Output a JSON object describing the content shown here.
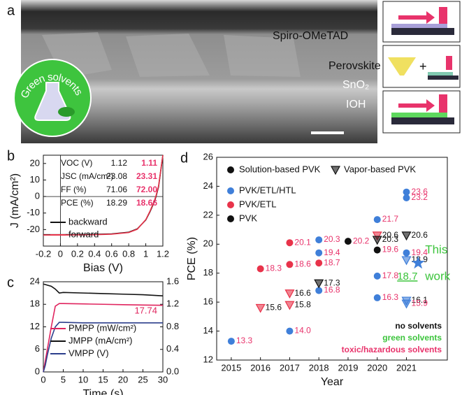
{
  "figure_a": {
    "panel": "a",
    "layers": [
      "Spiro-OMeTAD",
      "Perovskite",
      "SnO₂",
      "IOH"
    ],
    "badge": "Green solvents"
  },
  "chart_data": [
    {
      "type": "line",
      "panel": "b",
      "xlabel": "Bias (V)",
      "ylabel": "J (mA/cm²)",
      "xlim": [
        -0.2,
        1.2
      ],
      "xticks": [
        -0.2,
        0,
        0.2,
        0.4,
        0.6,
        0.8,
        1,
        1.2
      ],
      "ylim": [
        -30,
        25
      ],
      "yticks": [
        -20,
        -10,
        0,
        10,
        20
      ],
      "x": [
        -0.2,
        0,
        0.2,
        0.4,
        0.6,
        0.8,
        0.9,
        1.0,
        1.05,
        1.1,
        1.12,
        1.15,
        1.2
      ],
      "series": [
        {
          "name": "backward",
          "color": "#111111",
          "values": [
            -23.1,
            -23.08,
            -23.0,
            -22.9,
            -22.6,
            -21.6,
            -19.6,
            -14.2,
            -9.2,
            -3.2,
            0,
            6,
            25
          ]
        },
        {
          "name": "forward",
          "color": "#e8334a",
          "values": [
            -23.3,
            -23.31,
            -23.2,
            -23.1,
            -22.8,
            -21.8,
            -19.8,
            -14.0,
            -8.8,
            -2.6,
            0.5,
            6.5,
            25
          ]
        }
      ],
      "table": {
        "rows": [
          [
            "VOC (V)",
            "1.12",
            "1.11"
          ],
          [
            "JSC (mA/cm²)",
            "23.08",
            "23.31"
          ],
          [
            "FF (%)",
            "71.06",
            "72.00"
          ],
          [
            "PCE (%)",
            "18.29",
            "18.66"
          ]
        ],
        "column_colors": [
          "#111111",
          "#111111",
          "#e8336b"
        ]
      }
    },
    {
      "type": "line",
      "panel": "c",
      "xlabel": "Time (s)",
      "xlim": [
        0,
        30
      ],
      "xticks": [
        0,
        5,
        10,
        15,
        20,
        25,
        30
      ],
      "ylim": [
        0,
        24
      ],
      "yticks": [
        0,
        6,
        12,
        18,
        24
      ],
      "y2lim": [
        0,
        1.6
      ],
      "y2ticks": [
        {
          "value": 0,
          "label": "0.0"
        },
        0.4,
        0.8,
        1.2,
        1.6
      ],
      "x": [
        0,
        0.5,
        1,
        2,
        3,
        4,
        5,
        10,
        15,
        20,
        25,
        30
      ],
      "series": [
        {
          "name": "PMPP (mW/cm²)",
          "color": "#e0245e",
          "values": [
            0,
            3,
            6,
            12,
            17.5,
            18.2,
            18.2,
            18.1,
            18.0,
            17.9,
            17.8,
            17.74
          ]
        },
        {
          "name": "JMPP (mA/cm²)",
          "color": "#111111",
          "axis": "y2",
          "values": [
            1.56,
            1.55,
            1.54,
            1.52,
            1.47,
            1.4,
            1.41,
            1.4,
            1.39,
            1.38,
            1.37,
            1.35
          ]
        },
        {
          "name": "VMPP (V)",
          "color": "#2c3e8c",
          "axis": "y2",
          "values": [
            0,
            0.12,
            0.3,
            0.6,
            0.8,
            0.88,
            0.88,
            0.87,
            0.87,
            0.87,
            0.87,
            0.87
          ]
        }
      ],
      "annotation": "17.74"
    },
    {
      "type": "scatter",
      "panel": "d",
      "xlabel": "Year",
      "ylabel": "PCE (%)",
      "xlim": [
        2014.5,
        2022.4
      ],
      "xticks": [
        2015,
        2016,
        2017,
        2018,
        2019,
        2020,
        2021
      ],
      "ylim": [
        12,
        26
      ],
      "yticks": [
        12,
        14,
        16,
        18,
        20,
        22,
        24,
        26
      ],
      "series": [
        {
          "name": "PVK/ETL/HTL",
          "color": "#3f7fd9",
          "x": [
            2015,
            2017,
            2018,
            2018,
            2018,
            2020,
            2020,
            2020,
            2021,
            2021,
            2021,
            2021,
            2021,
            2021
          ],
          "values": [
            13.3,
            14.0,
            20.3,
            19.4,
            16.8,
            21.7,
            17.8,
            16.3,
            18.9,
            23.6,
            23.2,
            19.4,
            16.1,
            15.9
          ],
          "value_labels": [
            "13.3",
            "14.0",
            "20.3",
            "19.4",
            "16.8",
            "21.7",
            "17.8",
            "16.3",
            "18.9",
            "23.6",
            "23.2",
            "19.4",
            "16.1",
            "15.9"
          ],
          "markers": [
            "circle",
            "circle",
            "circle",
            "circle",
            "circle",
            "circle",
            "circle",
            "circle",
            "triangle",
            "circle",
            "circle",
            "circle",
            "triangle",
            "triangle"
          ],
          "label_colors": [
            "#e8336b",
            "#e8336b",
            "#e8336b",
            "#e8336b",
            "#e8336b",
            "#e8336b",
            "#e8336b",
            "#e8336b",
            "#111111",
            "#e8336b",
            "#e8336b",
            "#e8336b",
            "#111111",
            "#e8336b"
          ]
        },
        {
          "name": "PVK/ETL",
          "color": "#e8334a",
          "x": [
            2016,
            2017,
            2017,
            2018,
            2016,
            2017,
            2017,
            2020
          ],
          "values": [
            18.3,
            20.1,
            18.6,
            18.7,
            15.6,
            16.6,
            15.8,
            20.6
          ],
          "value_labels": [
            "18.3",
            "20.1",
            "18.6",
            "18.7",
            "15.6",
            "16.6",
            "15.8",
            "20.6"
          ],
          "markers": [
            "circle",
            "circle",
            "circle",
            "circle",
            "triangle",
            "triangle",
            "triangle",
            "triangle"
          ],
          "label_colors": [
            "#e8336b",
            "#e8336b",
            "#e8336b",
            "#e8336b",
            "#111111",
            "#111111",
            "#111111",
            "#111111"
          ]
        },
        {
          "name": "PVK",
          "color": "#111111",
          "x": [
            2019,
            2020,
            2020,
            2018,
            2021
          ],
          "values": [
            20.2,
            19.6,
            20.3,
            17.3,
            20.6
          ],
          "value_labels": [
            "20.2",
            "19.6",
            "20.3",
            "17.3",
            "20.6"
          ],
          "markers": [
            "circle",
            "circle",
            "triangle",
            "triangle",
            "triangle"
          ],
          "label_colors": [
            "#e8336b",
            "#e8336b",
            "#111111",
            "#111111",
            "#111111"
          ]
        }
      ],
      "marker_legend": [
        {
          "label": "Solution-based PVK",
          "marker": "circle"
        },
        {
          "label": "Vapor-based PVK",
          "marker": "triangle"
        }
      ],
      "solvent_legend": [
        {
          "label": "no solvents",
          "color": "#111111"
        },
        {
          "label": "green solvents",
          "color": "#3cc43c"
        },
        {
          "label": "toxic/hazardous solvents",
          "color": "#e8336b"
        }
      ],
      "highlight": {
        "x": 2021.4,
        "value": 18.7,
        "value_label": "18.7",
        "color": "#3f7fd9",
        "text_color": "#3cc43c",
        "label_lines": [
          "This",
          "work"
        ]
      }
    }
  ]
}
